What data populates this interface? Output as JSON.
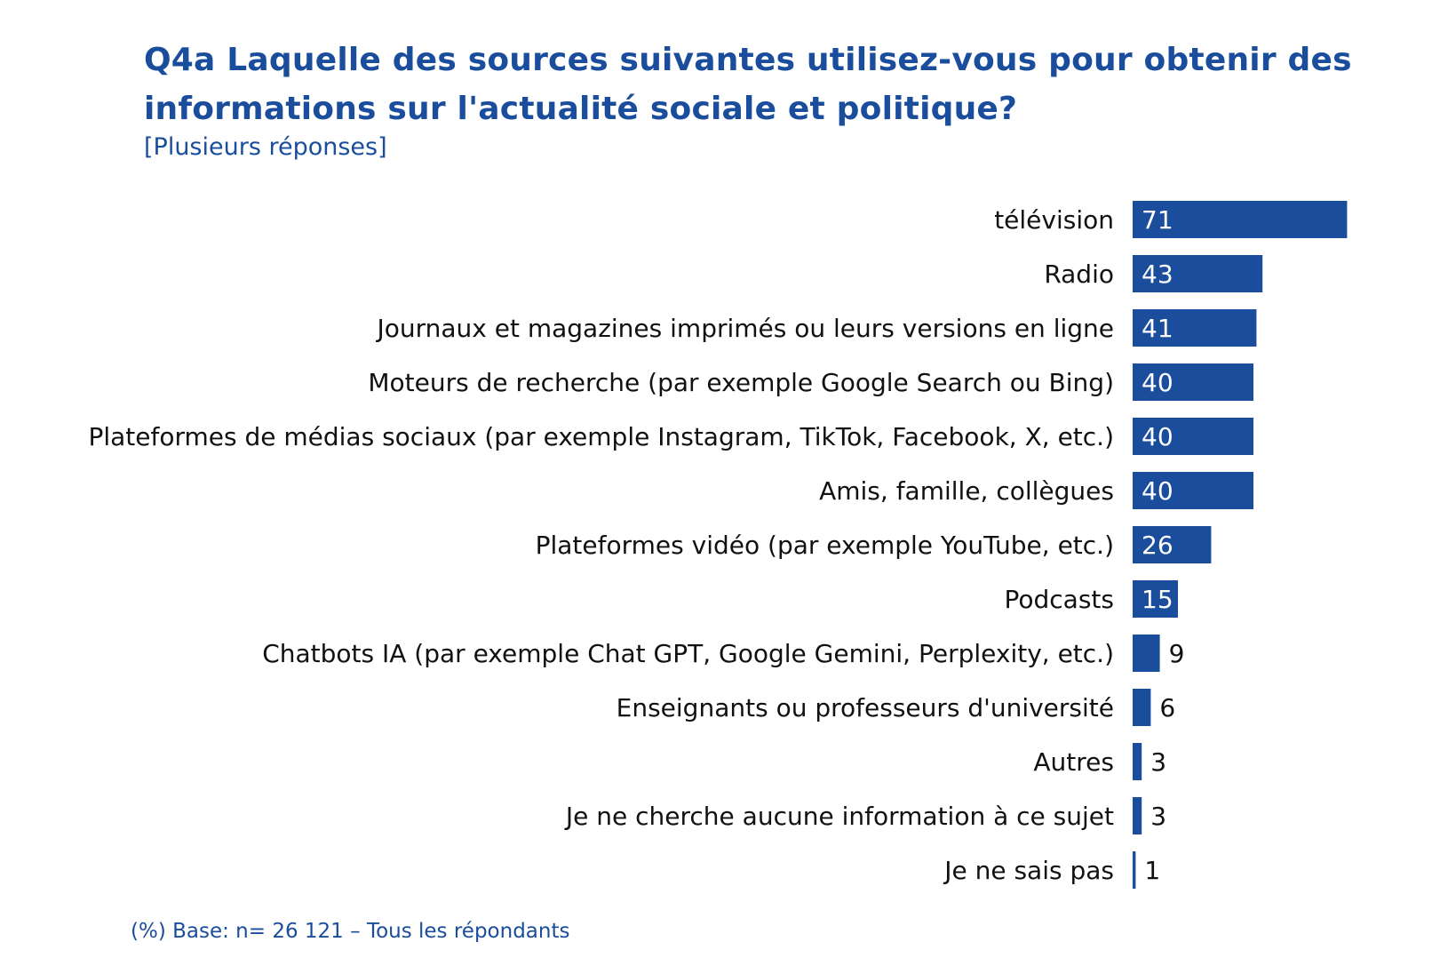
{
  "colors": {
    "accent": "#1a4d9c",
    "bar": "#1a4d9c",
    "text": "#111111",
    "value_inside": "#ffffff"
  },
  "chart_data": {
    "type": "bar",
    "orientation": "horizontal",
    "title": "Q4a Laquelle des sources suivantes utilisez-vous pour obtenir des informations sur l'actualité sociale et politique?",
    "subtitle": "[Plusieurs réponses]",
    "footnote": "(%) Base: n= 26 121 – Tous les répondants",
    "categories": [
      "télévision",
      "Radio",
      "Journaux et magazines imprimés ou leurs versions en ligne",
      "Moteurs de recherche (par exemple Google Search ou Bing)",
      "Plateformes de médias sociaux (par exemple Instagram, TikTok, Facebook, X, etc.)",
      "Amis, famille, collègues",
      "Plateformes vidéo (par exemple YouTube, etc.)",
      "Podcasts",
      "Chatbots IA (par exemple Chat GPT, Google Gemini, Perplexity, etc.)",
      "Enseignants ou professeurs d'université",
      "Autres",
      "Je ne cherche aucune information à ce sujet",
      "Je ne sais pas"
    ],
    "values": [
      71,
      43,
      41,
      40,
      40,
      40,
      26,
      15,
      9,
      6,
      3,
      3,
      1
    ],
    "xlim": [
      0,
      100
    ],
    "grid": false,
    "legend": "none"
  }
}
